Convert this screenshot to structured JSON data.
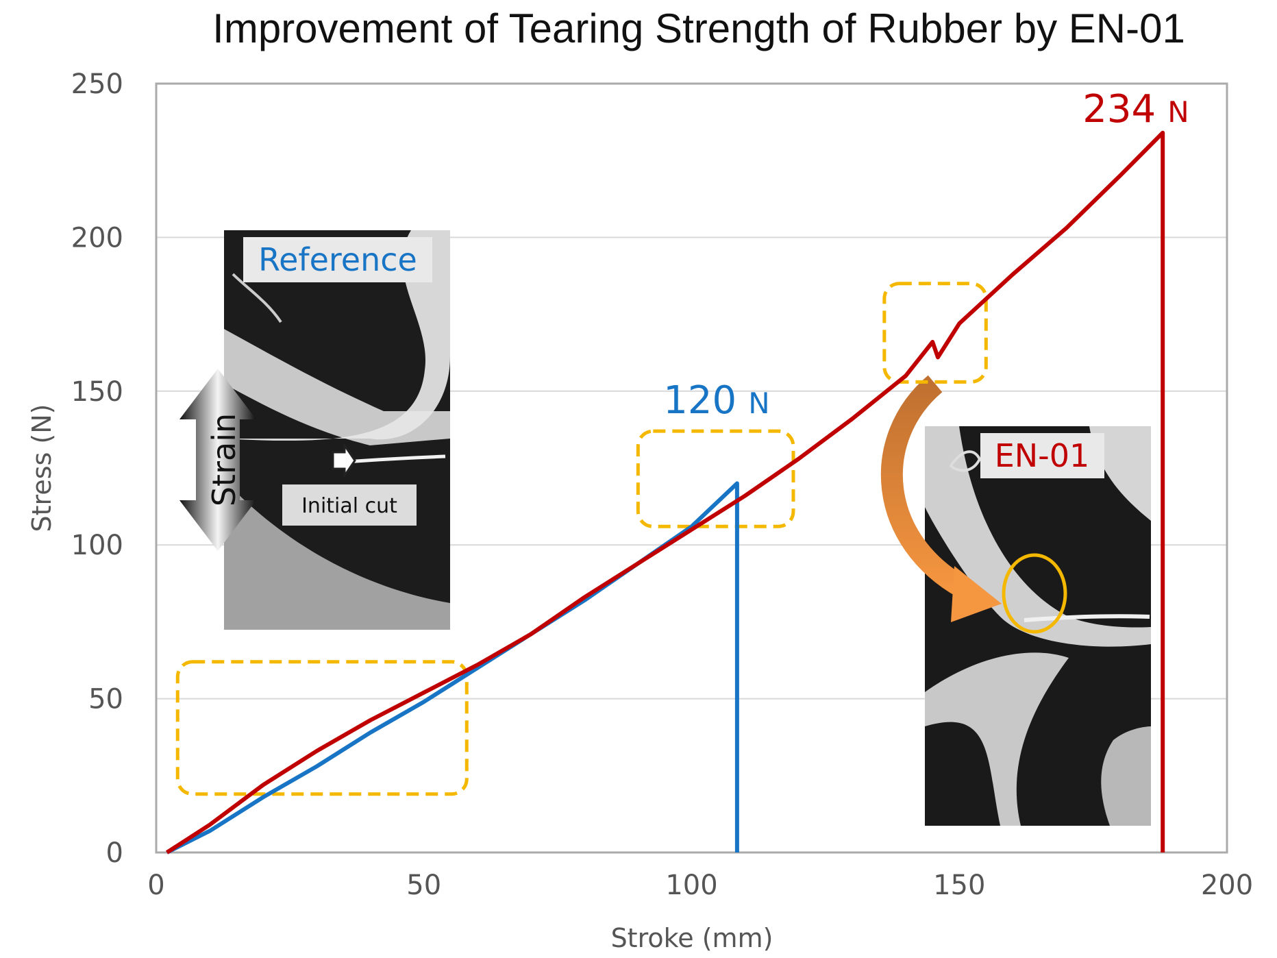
{
  "chart_data": {
    "type": "line",
    "title": "Improvement of Tearing Strength of Rubber by EN-01",
    "xlabel": "Stroke (mm)",
    "ylabel": "Stress (N)",
    "xlim": [
      0,
      200
    ],
    "ylim": [
      0,
      250
    ],
    "x_ticks": [
      "0",
      "50",
      "100",
      "150",
      "200"
    ],
    "y_ticks": [
      "0",
      "50",
      "100",
      "150",
      "200",
      "250"
    ],
    "grid": "horizontal",
    "series": [
      {
        "name": "Reference",
        "color": "#1874c4",
        "points": [
          [
            2,
            0
          ],
          [
            10,
            7
          ],
          [
            20,
            18
          ],
          [
            30,
            28
          ],
          [
            40,
            39
          ],
          [
            50,
            49
          ],
          [
            60,
            60
          ],
          [
            70,
            71
          ],
          [
            80,
            82
          ],
          [
            90,
            94
          ],
          [
            100,
            106
          ],
          [
            108.5,
            120
          ],
          [
            108.5,
            0
          ]
        ],
        "peak_value": "120",
        "peak_unit": "N"
      },
      {
        "name": "EN-01",
        "color": "#c00000",
        "points": [
          [
            2,
            0
          ],
          [
            10,
            9
          ],
          [
            20,
            22
          ],
          [
            30,
            33
          ],
          [
            40,
            43
          ],
          [
            50,
            52
          ],
          [
            60,
            61
          ],
          [
            70,
            71
          ],
          [
            80,
            83
          ],
          [
            90,
            94
          ],
          [
            100,
            105
          ],
          [
            110,
            116
          ],
          [
            120,
            128
          ],
          [
            130,
            141
          ],
          [
            140,
            155
          ],
          [
            145,
            166
          ],
          [
            146,
            161
          ],
          [
            150,
            172
          ],
          [
            160,
            188
          ],
          [
            170,
            203
          ],
          [
            180,
            220
          ],
          [
            188,
            234
          ],
          [
            188,
            0
          ]
        ],
        "peak_value": "234",
        "peak_unit": "N",
        "dip_at": 146
      }
    ],
    "annotations": {
      "photo_reference_label": "Reference",
      "photo_en01_label": "EN-01",
      "strain_label": "Strain",
      "initial_cut_label": "Initial cut"
    },
    "highlight_boxes": [
      {
        "x": [
          4,
          58
        ],
        "y": [
          19,
          62
        ]
      },
      {
        "x": [
          90,
          119
        ],
        "y": [
          106,
          137
        ]
      },
      {
        "x": [
          136,
          155
        ],
        "y": [
          153,
          185
        ]
      }
    ],
    "colors": {
      "highlight": "#f5b800",
      "axis_frame": "#aaaaaa",
      "grid": "#d9d9d9",
      "arrow": "#ee8a33"
    }
  }
}
